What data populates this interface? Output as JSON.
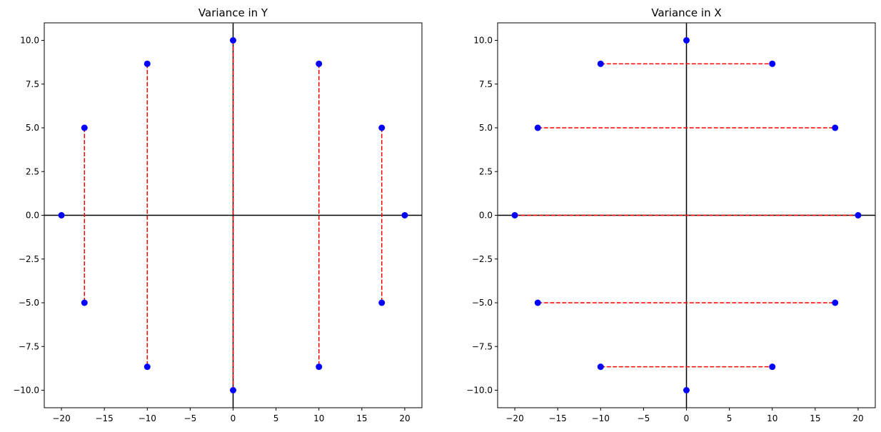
{
  "chart_data": [
    {
      "type": "scatter",
      "title": "Variance in Y",
      "xlabel": "",
      "ylabel": "",
      "xlim": [
        -22,
        22
      ],
      "ylim": [
        -11,
        11
      ],
      "xticks": [
        -20,
        -15,
        -10,
        -5,
        0,
        5,
        10,
        15,
        20
      ],
      "xtick_labels": [
        "−20",
        "−15",
        "−10",
        "−5",
        "0",
        "5",
        "10",
        "15",
        "20"
      ],
      "yticks": [
        10,
        7.5,
        5,
        2.5,
        0,
        -2.5,
        -5,
        -7.5,
        -10
      ],
      "ytick_labels": [
        "10.0",
        "7.5",
        "5.0",
        "2.5",
        "0.0",
        "−2.5",
        "−5.0",
        "−7.5",
        "−10.0"
      ],
      "points": [
        {
          "x": -20,
          "y": 0
        },
        {
          "x": -17.32,
          "y": 5
        },
        {
          "x": -17.32,
          "y": -5
        },
        {
          "x": -10,
          "y": 8.66
        },
        {
          "x": -10,
          "y": -8.66
        },
        {
          "x": 0,
          "y": 10
        },
        {
          "x": 0,
          "y": -10
        },
        {
          "x": 10,
          "y": 8.66
        },
        {
          "x": 10,
          "y": -8.66
        },
        {
          "x": 17.32,
          "y": 5
        },
        {
          "x": 17.32,
          "y": -5
        },
        {
          "x": 20,
          "y": 0
        }
      ],
      "segments": [
        {
          "x1": -17.32,
          "y1": 5,
          "x2": -17.32,
          "y2": -5
        },
        {
          "x1": -10,
          "y1": 8.66,
          "x2": -10,
          "y2": -8.66
        },
        {
          "x1": 0,
          "y1": 10,
          "x2": 0,
          "y2": -10
        },
        {
          "x1": 10,
          "y1": 8.66,
          "x2": 10,
          "y2": -8.66
        },
        {
          "x1": 17.32,
          "y1": 5,
          "x2": 17.32,
          "y2": -5
        }
      ],
      "axis_lines": {
        "horizontal_y": 0,
        "vertical_x": 0
      },
      "point_color": "#0000ff",
      "segment_color": "#ff0000",
      "axis_line_color": "#000000"
    },
    {
      "type": "scatter",
      "title": "Variance in X",
      "xlabel": "",
      "ylabel": "",
      "xlim": [
        -22,
        22
      ],
      "ylim": [
        -11,
        11
      ],
      "xticks": [
        -20,
        -15,
        -10,
        -5,
        0,
        5,
        10,
        15,
        20
      ],
      "xtick_labels": [
        "−20",
        "−15",
        "−10",
        "−5",
        "0",
        "5",
        "10",
        "15",
        "20"
      ],
      "yticks": [
        10,
        7.5,
        5,
        2.5,
        0,
        -2.5,
        -5,
        -7.5,
        -10
      ],
      "ytick_labels": [
        "10.0",
        "7.5",
        "5.0",
        "2.5",
        "0.0",
        "−2.5",
        "−5.0",
        "−7.5",
        "−10.0"
      ],
      "points": [
        {
          "x": 0,
          "y": 10
        },
        {
          "x": -10,
          "y": 8.66
        },
        {
          "x": 10,
          "y": 8.66
        },
        {
          "x": -17.32,
          "y": 5
        },
        {
          "x": 17.32,
          "y": 5
        },
        {
          "x": -20,
          "y": 0
        },
        {
          "x": 20,
          "y": 0
        },
        {
          "x": -17.32,
          "y": -5
        },
        {
          "x": 17.32,
          "y": -5
        },
        {
          "x": -10,
          "y": -8.66
        },
        {
          "x": 10,
          "y": -8.66
        },
        {
          "x": 0,
          "y": -10
        }
      ],
      "segments": [
        {
          "x1": -10,
          "y1": 8.66,
          "x2": 10,
          "y2": 8.66
        },
        {
          "x1": -17.32,
          "y1": 5,
          "x2": 17.32,
          "y2": 5
        },
        {
          "x1": -20,
          "y1": 0,
          "x2": 20,
          "y2": 0
        },
        {
          "x1": -17.32,
          "y1": -5,
          "x2": 17.32,
          "y2": -5
        },
        {
          "x1": -10,
          "y1": -8.66,
          "x2": 10,
          "y2": -8.66
        }
      ],
      "axis_lines": {
        "horizontal_y": 0,
        "vertical_x": 0
      },
      "point_color": "#0000ff",
      "segment_color": "#ff0000",
      "axis_line_color": "#000000"
    }
  ]
}
